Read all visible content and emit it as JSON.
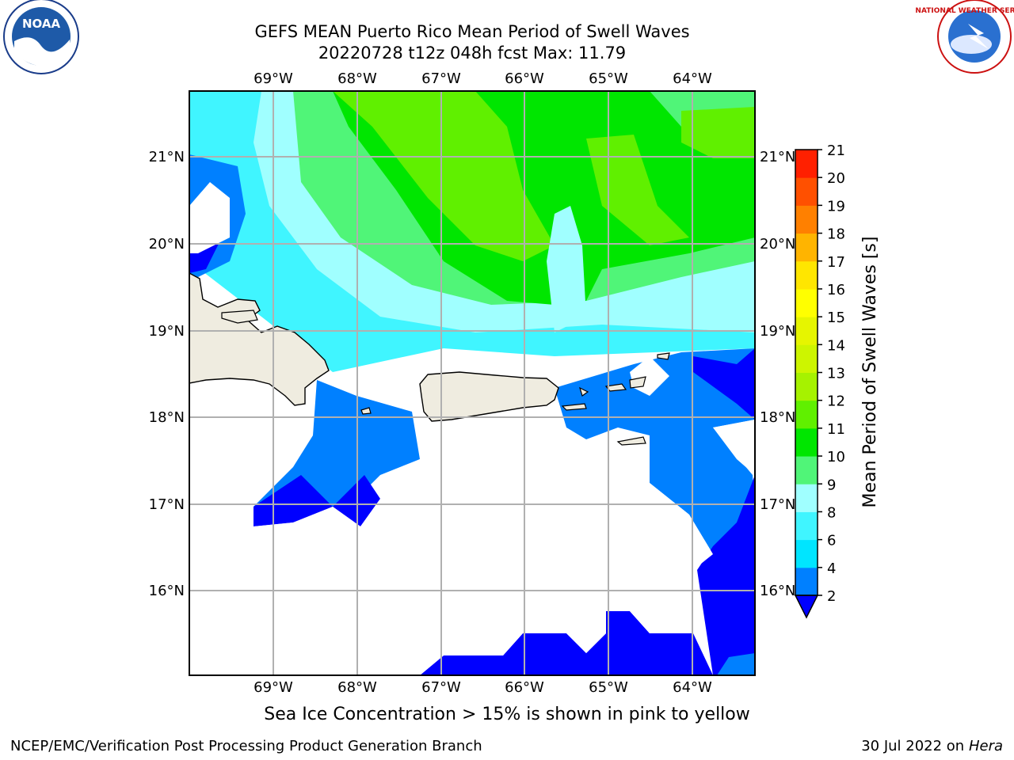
{
  "title": {
    "line1": "GEFS MEAN Puerto Rico Mean Period of Swell Waves",
    "line2": "20220728 t12z 048h fcst   Max: 11.79"
  },
  "map": {
    "lon_labels": [
      "69°W",
      "68°W",
      "67°W",
      "66°W",
      "65°W",
      "64°W"
    ],
    "lat_labels": [
      "21°N",
      "20°N",
      "19°N",
      "18°N",
      "17°N",
      "16°N"
    ],
    "land_color": "#efece0",
    "no_data_color": "#ffffff",
    "gridline_color": "#b0b0b0"
  },
  "colorbar": {
    "label": "Mean Period of Swell Waves [s]",
    "levels": [
      "2",
      "4",
      "6",
      "8",
      "9",
      "10",
      "11",
      "12",
      "13",
      "14",
      "15",
      "16",
      "17",
      "18",
      "19",
      "20",
      "21"
    ],
    "colors": [
      "#0000ff",
      "#0080ff",
      "#00e5ff",
      "#40f5ff",
      "#a0ffff",
      "#50f578",
      "#00e600",
      "#60f000",
      "#a6f200",
      "#cdf500",
      "#e6f500",
      "#ffff00",
      "#ffe600",
      "#ffb400",
      "#ff8000",
      "#ff5000",
      "#ff2000",
      "#ff0000"
    ]
  },
  "note": "Sea Ice Concentration > 15% is shown in pink to yellow",
  "credits": {
    "left": "NCEP/EMC/Verification Post Processing Product Generation Branch",
    "date": "30 Jul 2022 on ",
    "host": "Hera"
  },
  "logos": {
    "left": "NOAA",
    "right": "NATIONAL WEATHER SERVICE"
  }
}
